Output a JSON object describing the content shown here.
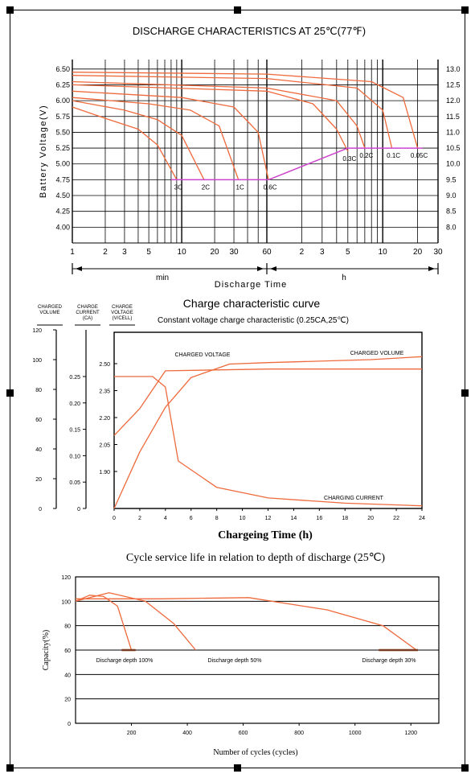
{
  "colors": {
    "curve": "#ee6a3c",
    "magenta": "#cc44cc",
    "grid": "#000000",
    "dark": "#7a3a20"
  },
  "chart_data": [
    {
      "type": "line",
      "title": "DISCHARGE CHARACTERISTICS AT 25℃(77℉)",
      "ylabel": "Battery Voltage(V)",
      "xlabel": "Discharge Time",
      "x_unit_left": "min",
      "x_unit_right": "h",
      "y_ticks_left": [
        "6.50",
        "6.25",
        "6.00",
        "5.75",
        "5.50",
        "5.25",
        "5.00",
        "4.75",
        "4.50",
        "4.25",
        "4.00"
      ],
      "y_ticks_right": [
        "13.0",
        "12.5",
        "12.0",
        "11.5",
        "11.0",
        "10.5",
        "10.0",
        "9.5",
        "9.0",
        "8.5",
        "8.0"
      ],
      "x_ticks_min": [
        "1",
        "2",
        "3",
        "5",
        "10",
        "20",
        "30",
        "60"
      ],
      "x_ticks_h": [
        "2",
        "3",
        "5",
        "10",
        "20",
        "30"
      ],
      "ylim": [
        3.75,
        6.65
      ],
      "series": [
        {
          "name": "3C",
          "end_min": 9,
          "points": [
            [
              1,
              5.9
            ],
            [
              2,
              5.72
            ],
            [
              4,
              5.55
            ],
            [
              6,
              5.3
            ],
            [
              9,
              4.75
            ]
          ]
        },
        {
          "name": "2C",
          "end_min": 16,
          "points": [
            [
              1,
              6.0
            ],
            [
              3,
              5.85
            ],
            [
              6,
              5.7
            ],
            [
              10,
              5.45
            ],
            [
              16,
              4.75
            ]
          ]
        },
        {
          "name": "1C",
          "end_min": 33,
          "points": [
            [
              1,
              6.05
            ],
            [
              5,
              5.95
            ],
            [
              12,
              5.85
            ],
            [
              22,
              5.6
            ],
            [
              33,
              4.75
            ]
          ]
        },
        {
          "name": "0.6C",
          "end_min": 62,
          "points": [
            [
              1,
              6.15
            ],
            [
              10,
              6.05
            ],
            [
              30,
              5.9
            ],
            [
              50,
              5.5
            ],
            [
              62,
              4.75
            ]
          ]
        },
        {
          "name": "0.3C",
          "end_min": 300,
          "points": [
            [
              1,
              6.25
            ],
            [
              60,
              6.15
            ],
            [
              150,
              5.95
            ],
            [
              240,
              5.55
            ],
            [
              300,
              5.2
            ]
          ]
        },
        {
          "name": "0.2C",
          "end_min": 420,
          "points": [
            [
              1,
              6.3
            ],
            [
              60,
              6.2
            ],
            [
              240,
              6.0
            ],
            [
              360,
              5.6
            ],
            [
              420,
              5.25
            ]
          ]
        },
        {
          "name": "0.1C",
          "end_min": 720,
          "points": [
            [
              1,
              6.4
            ],
            [
              60,
              6.35
            ],
            [
              360,
              6.2
            ],
            [
              600,
              5.85
            ],
            [
              720,
              5.25
            ]
          ]
        },
        {
          "name": "0.05C",
          "end_min": 1200,
          "points": [
            [
              1,
              6.45
            ],
            [
              60,
              6.42
            ],
            [
              480,
              6.3
            ],
            [
              900,
              6.05
            ],
            [
              1200,
              5.25
            ]
          ]
        }
      ],
      "cutoff_points": [
        [
          8,
          4.75
        ],
        [
          62,
          4.75
        ],
        [
          300,
          5.25
        ],
        [
          1320,
          5.25
        ]
      ]
    },
    {
      "type": "line",
      "title": "Charge characteristic curve",
      "subtitle": "Constant voltage charge characteristic (0.25CA,25℃)",
      "xlabel": "Chargeing Time (h)",
      "axis_headers": [
        "CHARGED VOLUME",
        "CHARGE CURRENT (CA)",
        "CHARGE VOLTAGE (V/CELL)"
      ],
      "x_ticks": [
        "0",
        "2",
        "4",
        "6",
        "8",
        "10",
        "12",
        "14",
        "16",
        "18",
        "20",
        "22",
        "24"
      ],
      "volume_ticks": [
        "120",
        "100",
        "80",
        "60",
        "40",
        "20",
        "0"
      ],
      "current_ticks": [
        "0.25",
        "0.20",
        "0.15",
        "0.10",
        "0.05",
        "0"
      ],
      "voltage_ticks": [
        "2.50",
        "2.35",
        "2.20",
        "2.05",
        "1.90"
      ],
      "series": [
        {
          "name": "CHARGED VOLTAGE",
          "points": [
            [
              0,
              2.1
            ],
            [
              2,
              2.25
            ],
            [
              4,
              2.46
            ],
            [
              12,
              2.47
            ],
            [
              18,
              2.47
            ],
            [
              24,
              2.47
            ]
          ]
        },
        {
          "name": "CHARGED VOLUME",
          "points": [
            [
              0,
              0
            ],
            [
              2,
              38
            ],
            [
              4,
              68
            ],
            [
              6,
              88
            ],
            [
              9,
              97
            ],
            [
              12,
              98
            ],
            [
              16,
              99
            ],
            [
              20,
              100
            ],
            [
              24,
              102
            ]
          ]
        },
        {
          "name": "CHARGING CURRENT",
          "points": [
            [
              0,
              0.25
            ],
            [
              3,
              0.25
            ],
            [
              4,
              0.23
            ],
            [
              5,
              0.09
            ],
            [
              8,
              0.04
            ],
            [
              12,
              0.02
            ],
            [
              18,
              0.01
            ],
            [
              24,
              0.005
            ]
          ]
        }
      ]
    },
    {
      "type": "line",
      "title": "Cycle service life in relation to depth of discharge (25℃)",
      "xlabel": "Number of cycles (cycles)",
      "ylabel": "Capacity(%)",
      "x_ticks": [
        "200",
        "400",
        "600",
        "800",
        "1000",
        "1200"
      ],
      "y_ticks": [
        "120",
        "100",
        "80",
        "60",
        "40",
        "20",
        "0"
      ],
      "xlim": [
        0,
        1300
      ],
      "ylim": [
        0,
        120
      ],
      "series": [
        {
          "name": "Discharge depth 100%",
          "points": [
            [
              0,
              100
            ],
            [
              50,
              105
            ],
            [
              100,
              104
            ],
            [
              150,
              96
            ],
            [
              200,
              60
            ]
          ]
        },
        {
          "name": "Discharge depth 50%",
          "points": [
            [
              0,
              100
            ],
            [
              120,
              107
            ],
            [
              250,
              100
            ],
            [
              350,
              82
            ],
            [
              430,
              60
            ]
          ]
        },
        {
          "name": "Discharge depth 30%",
          "points": [
            [
              0,
              102
            ],
            [
              300,
              102
            ],
            [
              620,
              103
            ],
            [
              900,
              93
            ],
            [
              1100,
              80
            ],
            [
              1220,
              60
            ]
          ]
        }
      ]
    }
  ]
}
